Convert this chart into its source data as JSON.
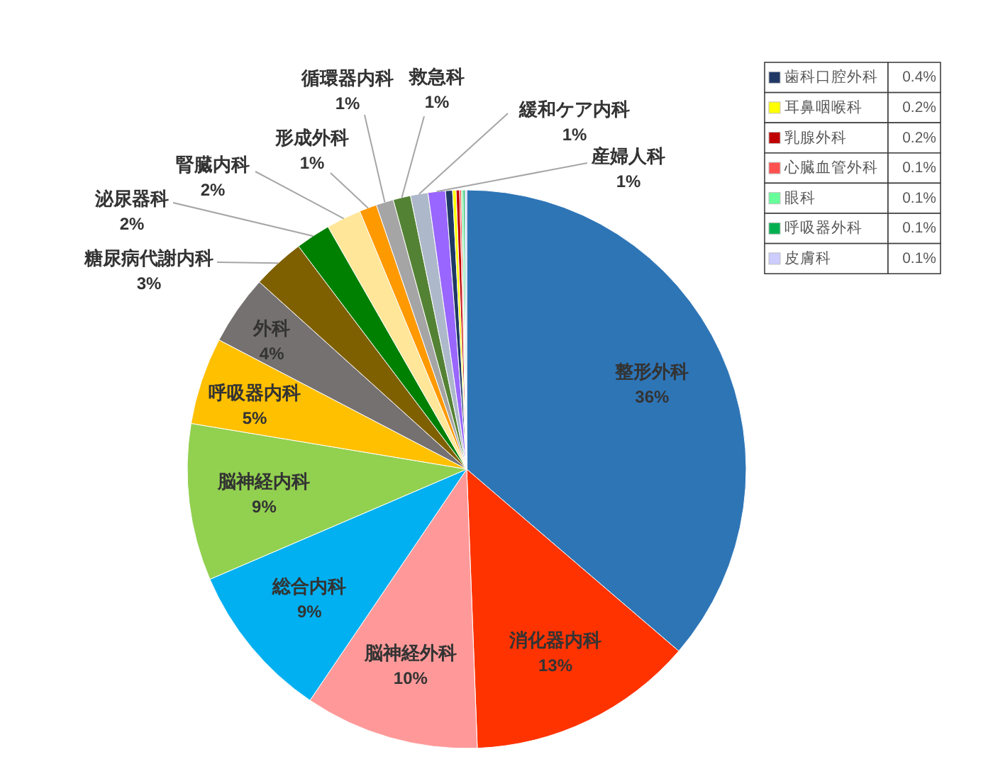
{
  "chart_data": {
    "type": "pie",
    "categories": [
      "整形外科",
      "消化器内科",
      "脳神経外科",
      "総合内科",
      "脳神経内科",
      "呼吸器内科",
      "外科",
      "糖尿病代謝内科",
      "泌尿器科",
      "腎臓内科",
      "形成外科",
      "循環器内科",
      "救急科",
      "緩和ケア内科",
      "産婦人科",
      "歯科口腔外科",
      "耳鼻咽喉科",
      "乳腺外科",
      "心臓血管外科",
      "眼科",
      "呼吸器外科",
      "皮膚科"
    ],
    "values": [
      36,
      13,
      10,
      9,
      9,
      5,
      4,
      3,
      2,
      2,
      1,
      1,
      1,
      1,
      1,
      0.4,
      0.2,
      0.2,
      0.1,
      0.1,
      0.1,
      0.1
    ],
    "colors": [
      "#2e75b6",
      "#ff3300",
      "#ff9999",
      "#00b0f0",
      "#92d050",
      "#ffc000",
      "#767171",
      "#7f6000",
      "#008000",
      "#ffe699",
      "#ff9900",
      "#a5a5a5",
      "#548235",
      "#adb9ca",
      "#9966ff",
      "#1f3864",
      "#ffff00",
      "#c00000",
      "#ff5050",
      "#66ff99",
      "#00b050",
      "#ccccff"
    ],
    "value_labels": [
      "36%",
      "13%",
      "10%",
      "9%",
      "9%",
      "5%",
      "4%",
      "3%",
      "2%",
      "2%",
      "1%",
      "1%",
      "1%",
      "1%",
      "1%",
      "0.4%",
      "0.2%",
      "0.2%",
      "0.1%",
      "0.1%",
      "0.1%",
      "0.1%"
    ],
    "legend": "top right"
  }
}
